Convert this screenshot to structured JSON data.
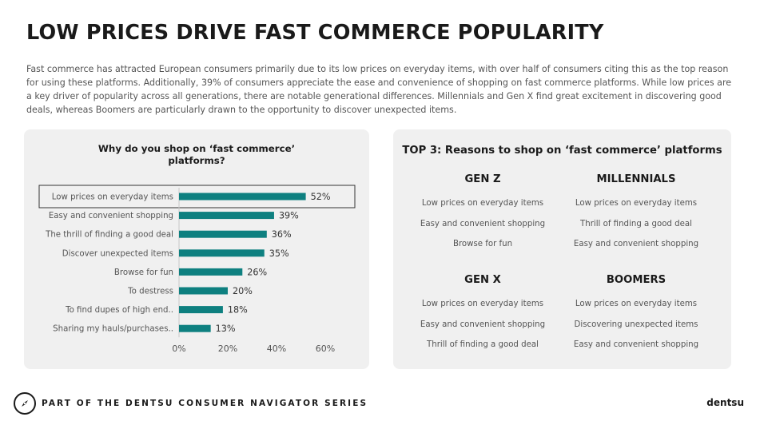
{
  "page": {
    "title": "LOW PRICES DRIVE FAST COMMERCE POPULARITY",
    "intro": "Fast commerce has attracted European consumers primarily due to its low prices on everyday items, with over half of consumers citing this as the top reason for using these platforms. Additionally, 39% of consumers appreciate the ease and convenience of shopping on fast commerce platforms. While low prices are a key driver of popularity across all generations, there are notable generational differences. Millennials and Gen X find great excitement in discovering good deals, whereas Boomers are particularly drawn to the opportunity to discover unexpected items."
  },
  "chart_data": {
    "type": "bar",
    "orientation": "horizontal",
    "title": "Why do you shop on ‘fast commerce’ platforms?",
    "title_lines": [
      "Why do you shop on ‘fast commerce’",
      "platforms?"
    ],
    "categories": [
      "Low prices on everyday items",
      "Easy and convenient shopping",
      "The thrill of finding a good deal",
      "Discover unexpected items",
      "Browse for fun",
      "To destress",
      "To find dupes of high end..",
      "Sharing my hauls/purchases.."
    ],
    "values": [
      52,
      39,
      36,
      35,
      26,
      20,
      18,
      13
    ],
    "value_labels": [
      "52%",
      "39%",
      "36%",
      "35%",
      "26%",
      "20%",
      "18%",
      "13%"
    ],
    "xlim": [
      0,
      60
    ],
    "xticks": [
      "0%",
      "20%",
      "40%",
      "60%"
    ],
    "xtick_values": [
      0,
      20,
      40,
      60
    ],
    "highlighted_index": 0,
    "bar_color": "#0e8080",
    "grid": false
  },
  "top3": {
    "title": "TOP 3: Reasons to shop on ‘fast commerce’ platforms",
    "generations": [
      {
        "name": "GEN Z",
        "reasons": [
          "Low prices on everyday items",
          "Easy and convenient shopping",
          "Browse for fun"
        ]
      },
      {
        "name": "MILLENNIALS",
        "reasons": [
          "Low prices on everyday items",
          "Thrill of finding a good deal",
          "Easy and convenient shopping"
        ]
      },
      {
        "name": "GEN X",
        "reasons": [
          "Low prices on everyday items",
          "Easy and convenient shopping",
          "Thrill of finding a good deal"
        ]
      },
      {
        "name": "BOOMERS",
        "reasons": [
          "Low prices on everyday items",
          "Discovering unexpected items",
          "Easy and convenient shopping"
        ]
      }
    ]
  },
  "footer": {
    "series_label": "PART OF THE DENTSU CONSUMER NAVIGATOR SERIES",
    "brand": "dentsu",
    "logo_icon": "compass-icon"
  },
  "colors": {
    "accent": "#0e8080",
    "panel_bg": "#f0f0f0",
    "title_text": "#1a1a1a",
    "body_text": "#555555"
  }
}
